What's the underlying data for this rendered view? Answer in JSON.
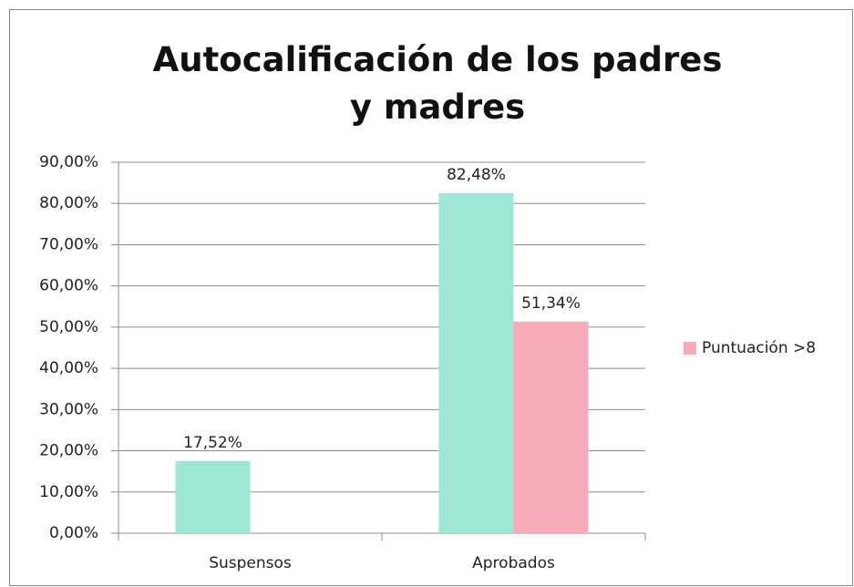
{
  "chart_data": {
    "type": "bar",
    "title": "Autocalificación de los padres y madres",
    "categories": [
      "Suspensos",
      "Aprobados"
    ],
    "series": [
      {
        "color": "#9ee6d6",
        "values": [
          17.52,
          82.48
        ],
        "value_labels": [
          "17,52%",
          "82,48%"
        ]
      },
      {
        "name": "Puntuación >8",
        "color": "#f8aab8",
        "values": [
          null,
          51.34
        ],
        "value_labels": [
          null,
          "51,34%"
        ]
      }
    ],
    "ylim": [
      0,
      90
    ],
    "yticks": [
      {
        "value": 0,
        "label": "0,00%"
      },
      {
        "value": 10,
        "label": "10,00%"
      },
      {
        "value": 20,
        "label": "20,00%"
      },
      {
        "value": 30,
        "label": "30,00%"
      },
      {
        "value": 40,
        "label": "40,00%"
      },
      {
        "value": 50,
        "label": "50,00%"
      },
      {
        "value": 60,
        "label": "60,00%"
      },
      {
        "value": 70,
        "label": "70,00%"
      },
      {
        "value": 80,
        "label": "80,00%"
      },
      {
        "value": 90,
        "label": "90,00%"
      }
    ],
    "grid": true,
    "legend": "right"
  }
}
